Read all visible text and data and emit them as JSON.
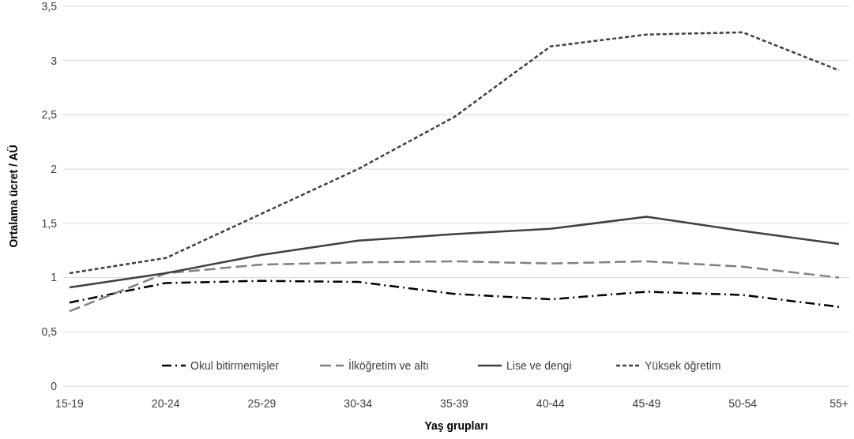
{
  "chart_data": {
    "type": "line",
    "xlabel": "Yaş grupları",
    "ylabel": "Ortalama ücret / AÜ",
    "categories": [
      "15-19",
      "20-24",
      "25-29",
      "30-34",
      "35-39",
      "40-44",
      "45-49",
      "50-54",
      "55+"
    ],
    "ylim": [
      0,
      3.5
    ],
    "yticks": [
      0,
      {
        "value": 0.5,
        "label": "0,5"
      },
      1,
      {
        "value": 1.5,
        "label": "1,5"
      },
      2,
      {
        "value": 2.5,
        "label": "2,5"
      },
      3,
      {
        "value": 3.5,
        "label": "3,5"
      }
    ],
    "grid": "y",
    "legend": "bottom",
    "marker": "none",
    "series": [
      {
        "name": "Okul bitirmemişler",
        "color": "#000000",
        "line_style": "dashdot",
        "values": [
          0.77,
          0.95,
          0.97,
          0.96,
          0.85,
          0.8,
          0.87,
          0.84,
          0.73
        ]
      },
      {
        "name": "İlköğretim ve altı",
        "color": "#808080",
        "line_style": "dashed",
        "values": [
          0.69,
          1.04,
          1.12,
          1.14,
          1.15,
          1.13,
          1.15,
          1.1,
          1.0
        ]
      },
      {
        "name": "Lise ve dengi",
        "color": "#404040",
        "line_style": "solid",
        "values": [
          0.91,
          1.04,
          1.21,
          1.34,
          1.4,
          1.45,
          1.56,
          1.43,
          1.31
        ]
      },
      {
        "name": "Yüksek öğretim",
        "color": "#404040",
        "line_style": "dotted",
        "values": [
          1.04,
          1.18,
          1.59,
          2.0,
          2.48,
          3.13,
          3.24,
          3.26,
          2.91
        ]
      }
    ]
  }
}
